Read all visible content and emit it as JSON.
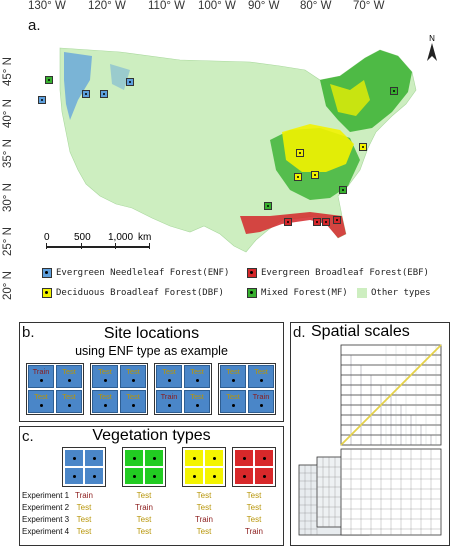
{
  "panel_a": {
    "letter": "a.",
    "lon_labels": [
      "130° W",
      "120° W",
      "110° W",
      "100° W",
      "90° W",
      "80° W",
      "70° W"
    ],
    "lat_labels": [
      "45° N",
      "40° N",
      "35° N",
      "30° N",
      "25° N",
      "20° N"
    ],
    "scalebar": {
      "ticks": [
        "0",
        "500",
        "1,000"
      ],
      "unit": "km"
    },
    "north": "N",
    "legend": [
      {
        "label": "Evergreen Needleleaf Forest(ENF)",
        "color": "#5ea0de"
      },
      {
        "label": "Evergreen Broadleaf Forest(EBF)",
        "color": "#d4272a"
      },
      {
        "label": "Deciduous Broadleaf Forest(DBF)",
        "color": "#f2f200"
      },
      {
        "label": "Mixed Forest(MF)",
        "color": "#37b02f"
      },
      {
        "label": "Other types",
        "color": "#cdeec0"
      }
    ]
  },
  "panel_b": {
    "letter": "b.",
    "title": "Site locations",
    "subtitle": "using ENF type as example",
    "grids": [
      [
        "Train",
        "Test",
        "Test",
        "Test"
      ],
      [
        "Test",
        "Test",
        "Test",
        "Test"
      ],
      [
        "Test",
        "Test",
        "Train",
        "Test"
      ],
      [
        "Test",
        "Test",
        "Test",
        "Train"
      ]
    ]
  },
  "panel_c": {
    "letter": "c.",
    "title": "Vegetation types",
    "colors": [
      "#4a86c8",
      "#22cc22",
      "#f4f400",
      "#d8282a"
    ],
    "experiments": [
      "Experiment 1",
      "Experiment 2",
      "Experiment 3",
      "Experiment 4"
    ],
    "table": [
      [
        "Train",
        "Test",
        "Test",
        "Test"
      ],
      [
        "Test",
        "Train",
        "Test",
        "Test"
      ],
      [
        "Test",
        "Test",
        "Train",
        "Test"
      ],
      [
        "Test",
        "Test",
        "Test",
        "Train"
      ]
    ]
  },
  "panel_d": {
    "letter": "d.",
    "title": "Spatial scales"
  },
  "colors": {
    "train": "#8b1a1a",
    "test": "#b8960a",
    "other_land": "#cdeec0"
  }
}
